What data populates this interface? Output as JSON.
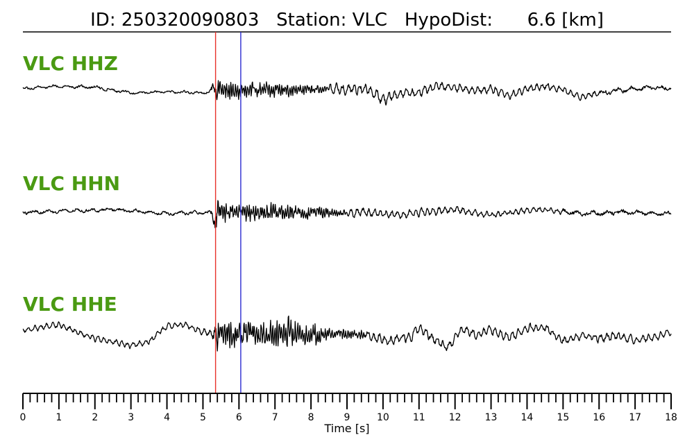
{
  "chart_data": {
    "type": "line",
    "title": {
      "id_label": "ID:",
      "id_value": "250320090803",
      "station_label": "Station:",
      "station_value": "VLC",
      "hypodist_label": "HypoDist:",
      "hypodist_value": "6.6",
      "hypodist_unit": "[km]"
    },
    "xlabel": "Time [s]",
    "xlim": [
      0,
      18
    ],
    "major_ticks": [
      0,
      1,
      2,
      3,
      4,
      5,
      6,
      7,
      8,
      9,
      10,
      11,
      12,
      13,
      14,
      15,
      16,
      17,
      18
    ],
    "minor_tick_step": 0.2,
    "grid": false,
    "p_pick": {
      "time": 5.35,
      "color": "#e8302a"
    },
    "s_pick": {
      "time": 6.05,
      "color": "#2a2ad0"
    },
    "label_color": "#4a9a12",
    "series": [
      {
        "name": "VLC HHZ",
        "color": "#000000",
        "envelope": [
          [
            0.0,
            3,
            "low"
          ],
          [
            1.0,
            3,
            "low"
          ],
          [
            2.0,
            4,
            "low"
          ],
          [
            3.0,
            3,
            "low"
          ],
          [
            4.0,
            3,
            "low"
          ],
          [
            5.2,
            3,
            "low"
          ],
          [
            5.4,
            35,
            "high"
          ],
          [
            5.6,
            25,
            "high"
          ],
          [
            6.0,
            22,
            "high"
          ],
          [
            7.0,
            20,
            "high"
          ],
          [
            7.8,
            14,
            "high"
          ],
          [
            8.5,
            10,
            "mid"
          ],
          [
            9.5,
            12,
            "mid"
          ],
          [
            10.5,
            10,
            "mid"
          ],
          [
            12.0,
            8,
            "mid"
          ],
          [
            14.0,
            8,
            "mid"
          ],
          [
            16.0,
            6,
            "low"
          ],
          [
            18.0,
            5,
            "low"
          ]
        ],
        "trend": [
          [
            0.0,
            0
          ],
          [
            1.0,
            4
          ],
          [
            2.0,
            2
          ],
          [
            3.0,
            -6
          ],
          [
            4.0,
            -4
          ],
          [
            5.0,
            -6
          ],
          [
            5.3,
            -2
          ],
          [
            9.6,
            0
          ],
          [
            10.0,
            -16
          ],
          [
            10.5,
            -6
          ],
          [
            11.0,
            -6
          ],
          [
            11.5,
            4
          ],
          [
            12.0,
            2
          ],
          [
            12.5,
            -2
          ],
          [
            13.0,
            0
          ],
          [
            13.5,
            -10
          ],
          [
            14.0,
            0
          ],
          [
            14.5,
            4
          ],
          [
            15.0,
            -2
          ],
          [
            15.5,
            -12
          ],
          [
            16.0,
            -6
          ],
          [
            17.0,
            0
          ],
          [
            17.5,
            2
          ],
          [
            18.0,
            0
          ]
        ]
      },
      {
        "name": "VLC HHN",
        "color": "#000000",
        "envelope": [
          [
            0.0,
            4,
            "low"
          ],
          [
            5.2,
            4,
            "low"
          ],
          [
            5.4,
            38,
            "high"
          ],
          [
            5.6,
            26,
            "high"
          ],
          [
            6.0,
            24,
            "high"
          ],
          [
            7.0,
            22,
            "high"
          ],
          [
            8.0,
            16,
            "high"
          ],
          [
            9.0,
            10,
            "mid"
          ],
          [
            10.0,
            8,
            "mid"
          ],
          [
            11.5,
            8,
            "mid"
          ],
          [
            13.0,
            6,
            "mid"
          ],
          [
            15.0,
            6,
            "low"
          ],
          [
            18.0,
            5,
            "low"
          ]
        ],
        "trend": [
          [
            0.0,
            0
          ],
          [
            2.5,
            4
          ],
          [
            4.0,
            -2
          ],
          [
            5.2,
            0
          ],
          [
            9.5,
            0
          ],
          [
            10.5,
            -4
          ],
          [
            11.5,
            2
          ],
          [
            12.0,
            4
          ],
          [
            13.0,
            -4
          ],
          [
            14.0,
            2
          ],
          [
            14.5,
            4
          ],
          [
            15.5,
            -2
          ],
          [
            16.5,
            0
          ],
          [
            18.0,
            -2
          ]
        ]
      },
      {
        "name": "VLC HHE",
        "color": "#000000",
        "envelope": [
          [
            0.0,
            6,
            "mid"
          ],
          [
            4.0,
            6,
            "mid"
          ],
          [
            5.2,
            7,
            "mid"
          ],
          [
            5.4,
            40,
            "high"
          ],
          [
            6.0,
            32,
            "high"
          ],
          [
            7.0,
            34,
            "high"
          ],
          [
            7.5,
            44,
            "high"
          ],
          [
            8.0,
            32,
            "high"
          ],
          [
            8.6,
            14,
            "high"
          ],
          [
            9.5,
            12,
            "mid"
          ],
          [
            12.0,
            9,
            "mid"
          ],
          [
            15.0,
            9,
            "mid"
          ],
          [
            18.0,
            8,
            "mid"
          ]
        ],
        "trend": [
          [
            0.0,
            6
          ],
          [
            1.0,
            14
          ],
          [
            2.0,
            -6
          ],
          [
            3.0,
            -16
          ],
          [
            3.5,
            -10
          ],
          [
            4.0,
            12
          ],
          [
            4.5,
            14
          ],
          [
            5.0,
            4
          ],
          [
            5.3,
            0
          ],
          [
            9.5,
            0
          ],
          [
            10.2,
            -10
          ],
          [
            10.8,
            -2
          ],
          [
            11.0,
            10
          ],
          [
            11.5,
            -10
          ],
          [
            11.8,
            -18
          ],
          [
            12.2,
            8
          ],
          [
            12.6,
            0
          ],
          [
            13.0,
            6
          ],
          [
            13.5,
            -4
          ],
          [
            14.0,
            8
          ],
          [
            14.5,
            10
          ],
          [
            15.0,
            -10
          ],
          [
            15.5,
            0
          ],
          [
            16.0,
            -6
          ],
          [
            16.5,
            -2
          ],
          [
            17.0,
            -8
          ],
          [
            17.5,
            -4
          ],
          [
            18.0,
            2
          ]
        ]
      }
    ]
  }
}
